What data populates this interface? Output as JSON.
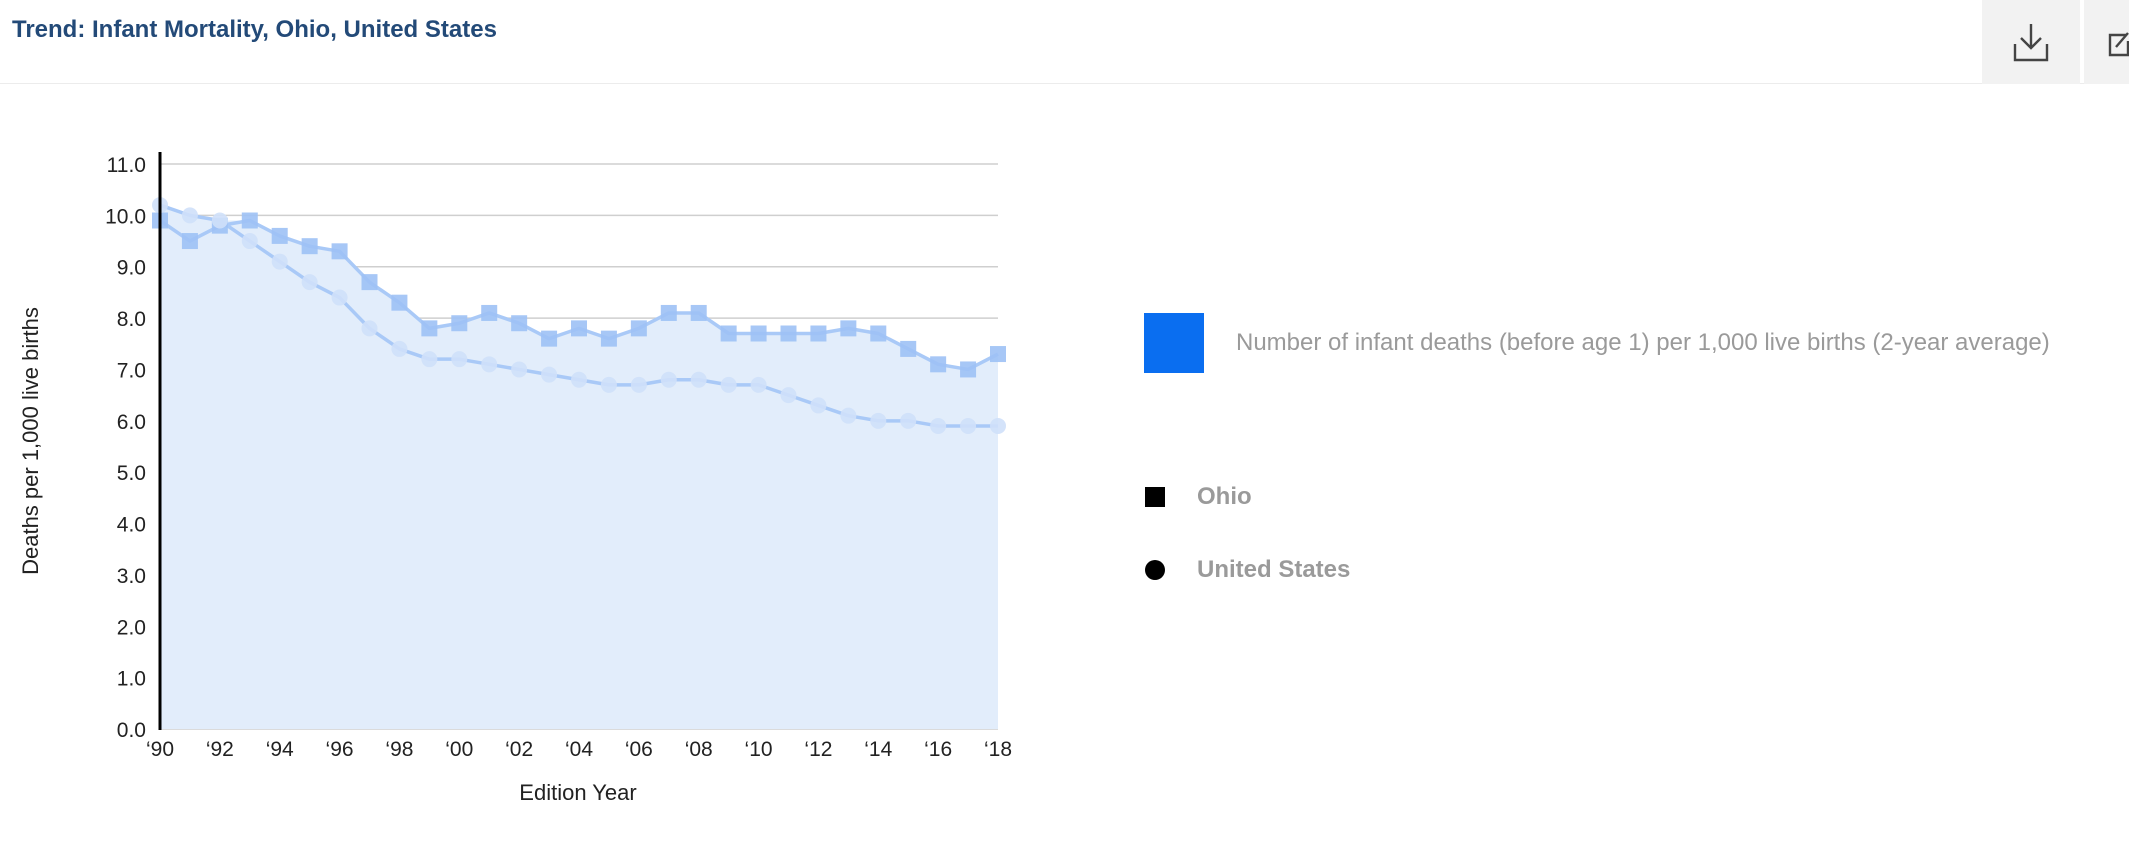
{
  "header": {
    "title": "Trend: Infant Mortality, Ohio, United States",
    "download_icon": "download-icon",
    "share_icon": "external-link-icon"
  },
  "legend": {
    "area_label": "Number of infant deaths (before age 1) per 1,000 live births (2-year average)",
    "area_color": "#0a6ef0",
    "series_labels": [
      "Ohio",
      "United States"
    ]
  },
  "chart_data": {
    "type": "line",
    "title": "",
    "xlabel": "Edition Year",
    "ylabel": "Deaths per 1,000 live births",
    "ylim": [
      0,
      11
    ],
    "yticks": [
      "0.0",
      "1.0",
      "2.0",
      "3.0",
      "4.0",
      "5.0",
      "6.0",
      "7.0",
      "8.0",
      "9.0",
      "10.0",
      "11.0"
    ],
    "x": [
      1990,
      1991,
      1992,
      1993,
      1994,
      1995,
      1996,
      1997,
      1998,
      1999,
      2000,
      2001,
      2002,
      2003,
      2004,
      2005,
      2006,
      2007,
      2008,
      2009,
      2010,
      2011,
      2012,
      2013,
      2014,
      2015,
      2016,
      2017,
      2018
    ],
    "xticks": [
      "‘90",
      "‘92",
      "‘94",
      "‘96",
      "‘98",
      "‘00",
      "‘02",
      "‘04",
      "‘06",
      "‘08",
      "‘10",
      "‘12",
      "‘14",
      "‘16",
      "‘18"
    ],
    "series": [
      {
        "name": "Ohio",
        "marker": "square",
        "values": [
          9.9,
          9.5,
          9.8,
          9.9,
          9.6,
          9.4,
          9.3,
          8.7,
          8.3,
          7.8,
          7.9,
          8.1,
          7.9,
          7.6,
          7.8,
          7.6,
          7.8,
          8.1,
          8.1,
          7.7,
          7.7,
          7.7,
          7.7,
          7.8,
          7.7,
          7.4,
          7.1,
          7.0,
          7.3
        ]
      },
      {
        "name": "United States",
        "marker": "circle",
        "values": [
          10.2,
          10.0,
          9.9,
          9.5,
          9.1,
          8.7,
          8.4,
          7.8,
          7.4,
          7.2,
          7.2,
          7.1,
          7.0,
          6.9,
          6.8,
          6.7,
          6.7,
          6.8,
          6.8,
          6.7,
          6.7,
          6.5,
          6.3,
          6.1,
          6.0,
          6.0,
          5.9,
          5.9,
          5.9
        ]
      }
    ],
    "grid": true,
    "area_fill": true,
    "line_color": "#a9c9f7",
    "fill_color": "#e2edfb"
  }
}
